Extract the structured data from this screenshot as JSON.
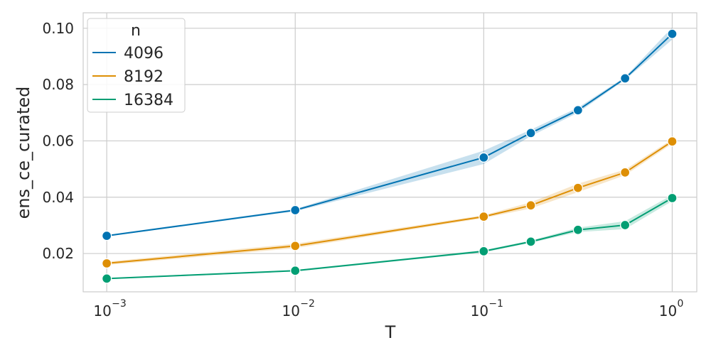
{
  "chart_data": {
    "type": "line",
    "xlabel": "T",
    "ylabel": "ens_ce_curated",
    "x_scale": "log",
    "xlim": [
      0.00075,
      1.35
    ],
    "ylim": [
      0.0064,
      0.1055
    ],
    "x_ticks": [
      {
        "value": 0.001,
        "base": "10",
        "exp": "−3"
      },
      {
        "value": 0.01,
        "base": "10",
        "exp": "−2"
      },
      {
        "value": 0.1,
        "base": "10",
        "exp": "−1"
      },
      {
        "value": 1,
        "base": "10",
        "exp": "0"
      }
    ],
    "y_ticks": [
      {
        "value": 0.02,
        "label": "0.02"
      },
      {
        "value": 0.04,
        "label": "0.04"
      },
      {
        "value": 0.06,
        "label": "0.06"
      },
      {
        "value": 0.08,
        "label": "0.08"
      },
      {
        "value": 0.1,
        "label": "0.10"
      }
    ],
    "grid": true,
    "legend": {
      "title": "n",
      "placement": "top-left"
    },
    "x": [
      0.001,
      0.01,
      0.1,
      0.1778,
      0.3162,
      0.5623,
      1.0
    ],
    "series": [
      {
        "name": "4096",
        "color": "#0173b2",
        "values": [
          0.0263,
          0.0354,
          0.0541,
          0.0628,
          0.0709,
          0.0822,
          0.098
        ],
        "lower": [
          0.0261,
          0.035,
          0.0518,
          0.0617,
          0.07,
          0.0817,
          0.096
        ],
        "upper": [
          0.0266,
          0.0358,
          0.0565,
          0.064,
          0.0718,
          0.0827,
          0.1003
        ]
      },
      {
        "name": "8192",
        "color": "#de8f05",
        "values": [
          0.0165,
          0.0227,
          0.0331,
          0.0371,
          0.0433,
          0.0488,
          0.0598
        ],
        "lower": [
          0.0159,
          0.0219,
          0.0326,
          0.036,
          0.0418,
          0.0478,
          0.059
        ],
        "upper": [
          0.0171,
          0.0235,
          0.0336,
          0.0382,
          0.0448,
          0.0498,
          0.0606
        ]
      },
      {
        "name": "16384",
        "color": "#029e73",
        "values": [
          0.0111,
          0.0139,
          0.0208,
          0.0242,
          0.0284,
          0.0301,
          0.0397
        ],
        "lower": [
          0.0109,
          0.0136,
          0.0204,
          0.0238,
          0.0276,
          0.0287,
          0.0386
        ],
        "upper": [
          0.0113,
          0.0142,
          0.0212,
          0.0246,
          0.0292,
          0.0315,
          0.0408
        ]
      }
    ]
  }
}
